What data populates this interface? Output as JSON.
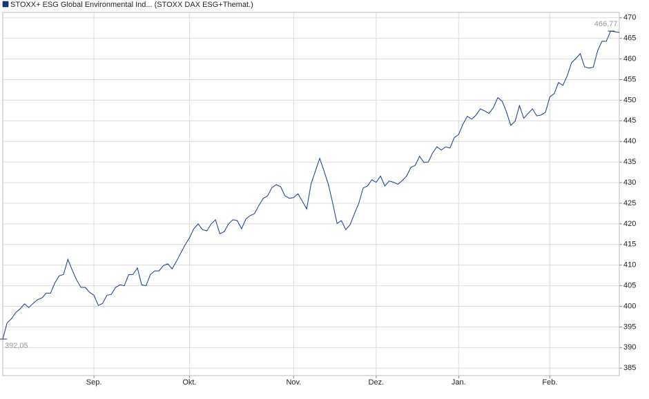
{
  "chart_data": {
    "type": "line",
    "series": [
      {
        "name": "STOXX+ ESG Global Environmental Ind... (STOXX DAX ESG+Themat.)",
        "color": "#0d3a8c",
        "values": [
          392.05,
          396,
          397,
          398.5,
          399.4,
          400.6,
          399.7,
          400.7,
          401.6,
          402,
          403.2,
          403.2,
          405.7,
          407.4,
          407.7,
          411.4,
          408.8,
          406.4,
          404.6,
          404.6,
          403.4,
          402.7,
          400.2,
          400.7,
          402.7,
          402.9,
          404.6,
          405.2,
          405,
          407.7,
          407.7,
          409.3,
          405.2,
          405,
          407.7,
          408.6,
          408.6,
          409.9,
          410.3,
          409.1,
          410.9,
          412.9,
          414.9,
          416.6,
          418.8,
          420,
          418.6,
          418.3,
          420,
          421,
          417.6,
          418.1,
          420,
          421,
          420.8,
          418.8,
          421.2,
          422,
          422.5,
          424.5,
          426.2,
          426.8,
          428.8,
          429.5,
          429,
          426.8,
          426.2,
          426.4,
          427.3,
          425.5,
          423.6,
          429.7,
          432.8,
          435.9,
          432.8,
          429.5,
          425,
          420.1,
          420.8,
          418.6,
          419.8,
          422.5,
          425,
          428.7,
          429.2,
          430.7,
          430.1,
          431.6,
          429.2,
          430.4,
          430.1,
          429.6,
          430.5,
          431.6,
          433.7,
          434.2,
          436.4,
          434.9,
          435,
          437.2,
          438.7,
          437.9,
          438.7,
          438.4,
          440.9,
          441.7,
          444.2,
          446.1,
          445.4,
          446.4,
          447.9,
          447.4,
          446.8,
          448.2,
          450.6,
          449.8,
          447.2,
          443.9,
          444.9,
          448.7,
          445.6,
          446.8,
          447.9,
          446.2,
          446.4,
          447.1,
          450.8,
          451.6,
          454.3,
          453.6,
          455.9,
          459.1,
          460.1,
          461.3,
          458.1,
          457.8,
          458,
          462,
          464.3,
          464.3,
          466.77,
          466.6,
          466.4
        ]
      }
    ],
    "xlim": [
      0,
      142
    ],
    "xticks": [
      {
        "value": 21,
        "label": "Sep."
      },
      {
        "value": 43,
        "label": "Okt."
      },
      {
        "value": 67,
        "label": "Nov."
      },
      {
        "value": 86,
        "label": "Dez."
      },
      {
        "value": 105,
        "label": "Jan."
      },
      {
        "value": 126,
        "label": "Feb."
      }
    ],
    "ylim": [
      383.2,
      471.3
    ],
    "yticks": [
      385,
      390,
      395,
      400,
      405,
      410,
      415,
      420,
      425,
      430,
      435,
      440,
      445,
      450,
      455,
      460,
      465,
      470
    ],
    "annotations": [
      {
        "text": "392,05",
        "x": 0,
        "y": 392.05
      },
      {
        "text": "466,77",
        "x": 140,
        "y": 466.77
      }
    ],
    "grid": true
  }
}
